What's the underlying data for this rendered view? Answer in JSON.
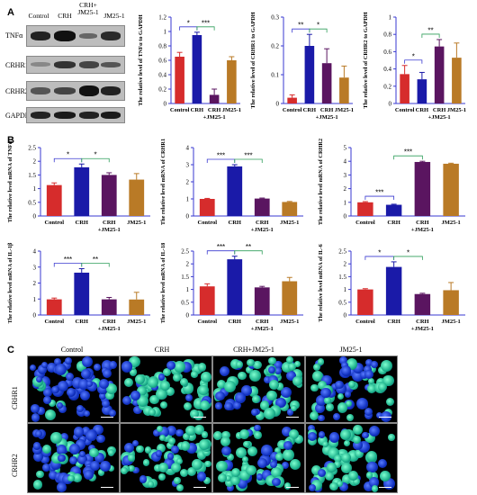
{
  "panels": {
    "a": "A",
    "b": "B",
    "c": "C"
  },
  "western_blot": {
    "columns": [
      "Control",
      "CRH",
      "CRH+\nJM25-1",
      "JM25-1"
    ],
    "rows": [
      "TNFα",
      "CRHR1",
      "CRHR2",
      "GAPDH"
    ]
  },
  "colors": {
    "Control": "#d62c2c",
    "CRH": "#1a1aa8",
    "CRH+JM25-1": "#5a1560",
    "JM25-1": "#b97a26",
    "axis": "#3a3ad0"
  },
  "microscopy": {
    "columns": [
      "Control",
      "CRH",
      "CRH+JM25-1",
      "JM25-1"
    ],
    "rows": [
      "CRHR1",
      "CRHR2"
    ]
  },
  "chart_data": [
    {
      "id": "a1",
      "type": "bar",
      "categories": [
        "Control",
        "CRH",
        "CRH +JM25-1",
        "JM25-1"
      ],
      "values": [
        0.65,
        0.95,
        0.12,
        0.6
      ],
      "errors": [
        0.06,
        0.04,
        0.08,
        0.05
      ],
      "ylim": [
        0,
        1.2
      ],
      "yticks": [
        0,
        0.2,
        0.4,
        0.6,
        0.8,
        1.0,
        1.2
      ],
      "ylabel": "The relative level of TNFα to GAPDH",
      "sig": [
        {
          "from": 0,
          "to": 1,
          "label": "*"
        },
        {
          "from": 1,
          "to": 2,
          "label": "***"
        }
      ]
    },
    {
      "id": "a2",
      "type": "bar",
      "categories": [
        "Control",
        "CRH",
        "CRH +JM25-1",
        "JM25-1"
      ],
      "values": [
        0.02,
        0.2,
        0.14,
        0.09
      ],
      "errors": [
        0.01,
        0.04,
        0.05,
        0.04
      ],
      "ylim": [
        0,
        0.3
      ],
      "yticks": [
        0,
        0.1,
        0.2,
        0.3
      ],
      "ylabel": "The relative level of CRHR1 to GAPDH",
      "sig": [
        {
          "from": 0,
          "to": 1,
          "label": "**"
        },
        {
          "from": 1,
          "to": 2,
          "label": "*"
        }
      ]
    },
    {
      "id": "a3",
      "type": "bar",
      "categories": [
        "Control",
        "CRH",
        "CRH +JM25-1",
        "JM25-1"
      ],
      "values": [
        0.34,
        0.28,
        0.66,
        0.53
      ],
      "errors": [
        0.1,
        0.08,
        0.08,
        0.17
      ],
      "ylim": [
        0,
        1.0
      ],
      "yticks": [
        0,
        0.2,
        0.4,
        0.6,
        0.8,
        1.0
      ],
      "ylabel": "The relative level of CRHR2 to GAPDH",
      "sig": [
        {
          "from": 0,
          "to": 1,
          "label": "*"
        },
        {
          "from": 1,
          "to": 2,
          "label": "**"
        }
      ]
    },
    {
      "id": "b1",
      "type": "bar",
      "categories": [
        "Control",
        "CRH",
        "CRH +JM25-1",
        "JM25-1"
      ],
      "values": [
        1.13,
        1.78,
        1.5,
        1.33
      ],
      "errors": [
        0.08,
        0.12,
        0.08,
        0.22
      ],
      "ylim": [
        0,
        2.5
      ],
      "yticks": [
        0,
        0.5,
        1.0,
        1.5,
        2.0,
        2.5
      ],
      "ylabel": "The relative level mRNA of TNFα",
      "sig": [
        {
          "from": 0,
          "to": 1,
          "label": "*"
        },
        {
          "from": 1,
          "to": 2,
          "label": "*"
        }
      ]
    },
    {
      "id": "b2",
      "type": "bar",
      "categories": [
        "Control",
        "CRH",
        "CRH +JM25-1",
        "JM25-1"
      ],
      "values": [
        1.0,
        2.9,
        1.02,
        0.82
      ],
      "errors": [
        0.03,
        0.1,
        0.03,
        0.03
      ],
      "ylim": [
        0,
        4
      ],
      "yticks": [
        0,
        1,
        2,
        3,
        4
      ],
      "ylabel": "The relative level mRNA of CRHR1",
      "sig": [
        {
          "from": 0,
          "to": 1,
          "label": "***"
        },
        {
          "from": 1,
          "to": 2,
          "label": "***"
        }
      ]
    },
    {
      "id": "b3",
      "type": "bar",
      "categories": [
        "Control",
        "CRH",
        "CRH +JM25-1",
        "JM25-1"
      ],
      "values": [
        1.0,
        0.82,
        3.95,
        3.82
      ],
      "errors": [
        0.05,
        0.04,
        0.05,
        0.04
      ],
      "ylim": [
        0,
        5
      ],
      "yticks": [
        0,
        1,
        2,
        3,
        4,
        5
      ],
      "ylabel": "The relative level mRNA of CRHR2",
      "sig": [
        {
          "from": 0,
          "to": 1,
          "label": "***"
        },
        {
          "from": 1,
          "to": 2,
          "label": "***"
        }
      ]
    },
    {
      "id": "b4",
      "type": "bar",
      "categories": [
        "Control",
        "CRH",
        "CRH +JM25-1",
        "JM25-1"
      ],
      "values": [
        0.98,
        2.65,
        0.98,
        0.97
      ],
      "errors": [
        0.08,
        0.25,
        0.12,
        0.45
      ],
      "ylim": [
        0,
        4
      ],
      "yticks": [
        0,
        1,
        2,
        3,
        4
      ],
      "ylabel": "The relative level mRNA of IL-1β",
      "sig": [
        {
          "from": 0,
          "to": 1,
          "label": "***"
        },
        {
          "from": 1,
          "to": 2,
          "label": "**"
        }
      ]
    },
    {
      "id": "b5",
      "type": "bar",
      "categories": [
        "Control",
        "CRH",
        "CRH +JM25-1",
        "JM25-1"
      ],
      "values": [
        1.12,
        2.18,
        1.08,
        1.32
      ],
      "errors": [
        0.1,
        0.12,
        0.04,
        0.15
      ],
      "ylim": [
        0,
        2.5
      ],
      "yticks": [
        0,
        0.5,
        1.0,
        1.5,
        2.0,
        2.5
      ],
      "ylabel": "The relative level mRNA of IL-18",
      "sig": [
        {
          "from": 0,
          "to": 1,
          "label": "***"
        },
        {
          "from": 1,
          "to": 2,
          "label": "**"
        }
      ]
    },
    {
      "id": "b6",
      "type": "bar",
      "categories": [
        "Control",
        "CRH",
        "CRH +JM25-1",
        "JM25-1"
      ],
      "values": [
        1.0,
        1.88,
        0.82,
        0.97
      ],
      "errors": [
        0.03,
        0.2,
        0.03,
        0.3
      ],
      "ylim": [
        0,
        2.5
      ],
      "yticks": [
        0,
        0.5,
        1.0,
        1.5,
        2.0,
        2.5
      ],
      "ylabel": "The relative level mRNA of IL-6",
      "sig": [
        {
          "from": 0,
          "to": 1,
          "label": "*"
        },
        {
          "from": 1,
          "to": 2,
          "label": "*"
        }
      ]
    }
  ]
}
